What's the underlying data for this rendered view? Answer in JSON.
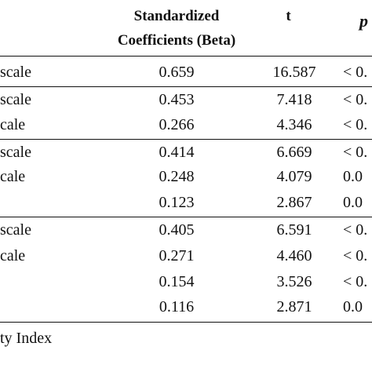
{
  "header": {
    "beta_line1": "Standardized",
    "beta_line2": "Coefficients (Beta)",
    "t": "t",
    "p": "p"
  },
  "rows": [
    {
      "label": "scale",
      "beta": "0.659",
      "t": "16.587",
      "p": "< 0."
    },
    {
      "label": "scale",
      "beta": "0.453",
      "t": "7.418",
      "p": "< 0."
    },
    {
      "label": "cale",
      "beta": "0.266",
      "t": "4.346",
      "p": "< 0."
    },
    {
      "label": "scale",
      "beta": "0.414",
      "t": "6.669",
      "p": "< 0."
    },
    {
      "label": "cale",
      "beta": "0.248",
      "t": "4.079",
      "p": "0.0"
    },
    {
      "label": "",
      "beta": "0.123",
      "t": "2.867",
      "p": "0.0"
    },
    {
      "label": "scale",
      "beta": "0.405",
      "t": "6.591",
      "p": "< 0."
    },
    {
      "label": "cale",
      "beta": "0.271",
      "t": "4.460",
      "p": "< 0."
    },
    {
      "label": "",
      "beta": "0.154",
      "t": "3.526",
      "p": "< 0."
    },
    {
      "label": "",
      "beta": "0.116",
      "t": "2.871",
      "p": "0.0"
    }
  ],
  "note": "ty Index"
}
